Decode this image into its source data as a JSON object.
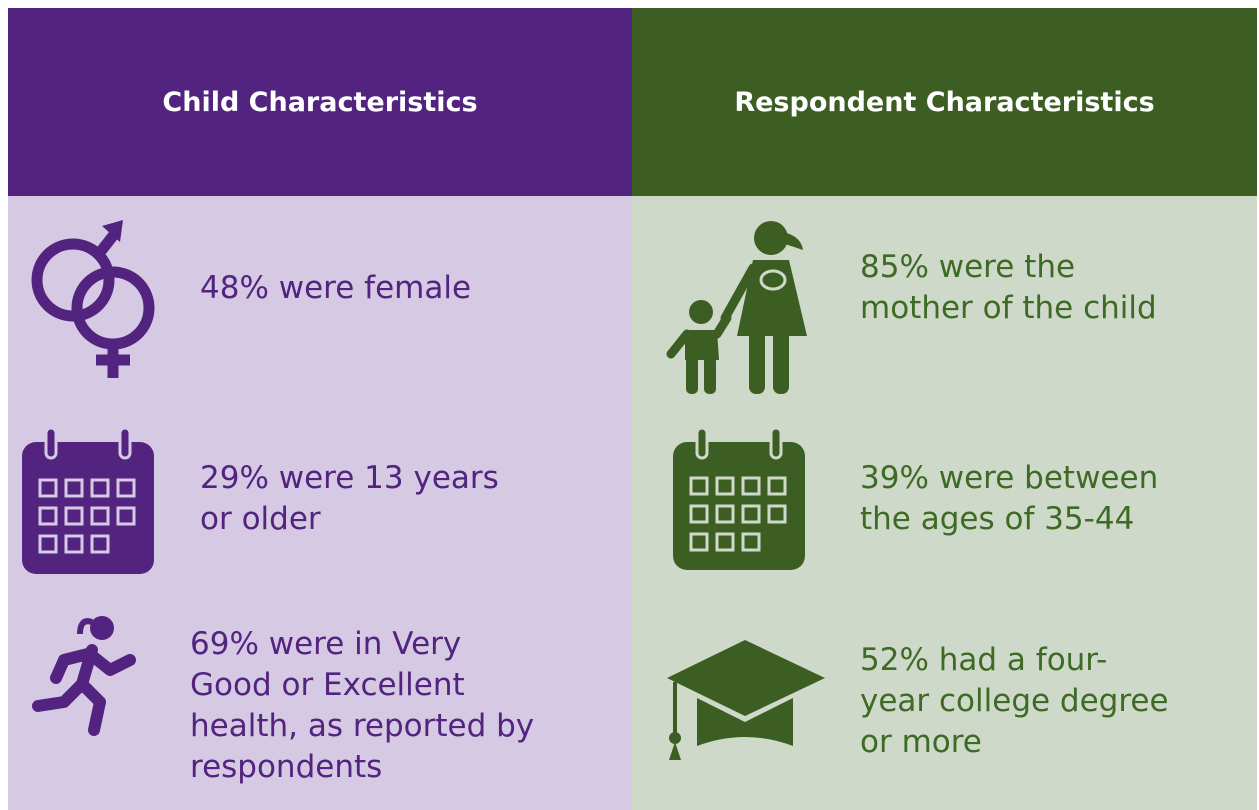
{
  "columns": [
    {
      "title": "Child Characteristics",
      "items": [
        {
          "lines": [
            "48% were female"
          ]
        },
        {
          "lines": [
            "29% were 13 years",
            "or older"
          ]
        },
        {
          "lines": [
            "69% were in Very",
            "Good or Excellent",
            "health, as reported by",
            "respondents"
          ]
        }
      ]
    },
    {
      "title": "Respondent Characteristics",
      "items": [
        {
          "lines": [
            "85% were the",
            "mother of the child"
          ]
        },
        {
          "lines": [
            "39% were between",
            "the ages of 35-44"
          ]
        },
        {
          "lines": [
            "52% had a four-",
            "year college degree",
            "or more"
          ]
        }
      ]
    }
  ]
}
